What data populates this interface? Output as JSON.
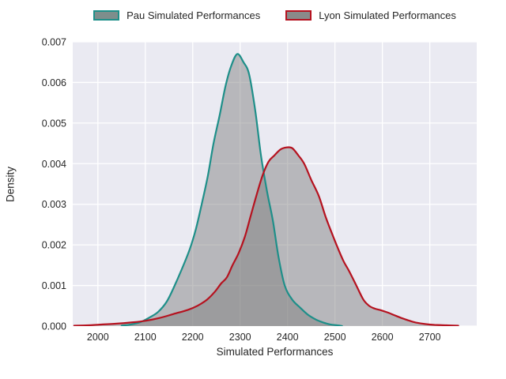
{
  "legend": {
    "items": [
      {
        "label": "Pau Simulated Performances",
        "edge_color": "#1e8f89",
        "swatch_fill": "#7d8e8c"
      },
      {
        "label": "Lyon Simulated Performances",
        "edge_color": "#b5121f",
        "swatch_fill": "#8a8a8a"
      }
    ]
  },
  "chart_data": {
    "type": "area",
    "subtype": "kde-density",
    "title": "",
    "xlabel": "Simulated Performances",
    "ylabel": "Density",
    "xlim": [
      1947,
      2799
    ],
    "ylim": [
      0,
      0.007
    ],
    "x_ticks": [
      2000,
      2100,
      2200,
      2300,
      2400,
      2500,
      2600,
      2700
    ],
    "y_ticks": [
      "0.000",
      "0.001",
      "0.002",
      "0.003",
      "0.004",
      "0.005",
      "0.006",
      "0.007"
    ],
    "grid": true,
    "legend_position": "top",
    "colors": {
      "plot_bg": "#eaeaf2",
      "grid": "#ffffff",
      "fill": "#7f7f7f",
      "fill_alpha": 0.48,
      "text": "#262626"
    },
    "series": [
      {
        "name": "Pau Simulated Performances",
        "color": "#1e8f89",
        "peak": {
          "x": 2294,
          "density": 0.0067
        },
        "points": [
          [
            2050,
            1e-05
          ],
          [
            2070,
            4e-05
          ],
          [
            2090,
            0.0001
          ],
          [
            2110,
            0.00022
          ],
          [
            2127,
            0.00035
          ],
          [
            2145,
            0.0006
          ],
          [
            2160,
            0.00095
          ],
          [
            2177,
            0.0014
          ],
          [
            2194,
            0.0019
          ],
          [
            2207,
            0.0024
          ],
          [
            2219,
            0.003
          ],
          [
            2232,
            0.0037
          ],
          [
            2244,
            0.0045
          ],
          [
            2257,
            0.0052
          ],
          [
            2269,
            0.0059
          ],
          [
            2281,
            0.0064
          ],
          [
            2294,
            0.0067
          ],
          [
            2307,
            0.0065
          ],
          [
            2319,
            0.0062
          ],
          [
            2332,
            0.0053
          ],
          [
            2344,
            0.0042
          ],
          [
            2357,
            0.0033
          ],
          [
            2369,
            0.0026
          ],
          [
            2381,
            0.0017
          ],
          [
            2394,
            0.001
          ],
          [
            2410,
            0.00065
          ],
          [
            2427,
            0.00045
          ],
          [
            2443,
            0.00028
          ],
          [
            2460,
            0.00016
          ],
          [
            2475,
            9e-05
          ],
          [
            2490,
            4e-05
          ],
          [
            2505,
            2e-05
          ],
          [
            2515,
            0.0
          ]
        ]
      },
      {
        "name": "Lyon Simulated Performances",
        "color": "#b5121f",
        "peak": {
          "x": 2398,
          "density": 0.0044
        },
        "points": [
          [
            1950,
            1e-05
          ],
          [
            1980,
            2e-05
          ],
          [
            2010,
            4e-05
          ],
          [
            2040,
            6e-05
          ],
          [
            2070,
            9e-05
          ],
          [
            2100,
            0.00013
          ],
          [
            2130,
            0.0002
          ],
          [
            2160,
            0.0003
          ],
          [
            2190,
            0.0004
          ],
          [
            2210,
            0.0005
          ],
          [
            2230,
            0.00065
          ],
          [
            2247,
            0.00085
          ],
          [
            2260,
            0.00105
          ],
          [
            2272,
            0.0012
          ],
          [
            2284,
            0.0015
          ],
          [
            2297,
            0.0018
          ],
          [
            2310,
            0.0022
          ],
          [
            2322,
            0.0027
          ],
          [
            2334,
            0.0032
          ],
          [
            2347,
            0.0037
          ],
          [
            2360,
            0.00405
          ],
          [
            2372,
            0.0042
          ],
          [
            2385,
            0.00435
          ],
          [
            2398,
            0.0044
          ],
          [
            2410,
            0.00438
          ],
          [
            2423,
            0.0042
          ],
          [
            2435,
            0.004
          ],
          [
            2450,
            0.0036
          ],
          [
            2466,
            0.0032
          ],
          [
            2480,
            0.0027
          ],
          [
            2493,
            0.0023
          ],
          [
            2505,
            0.00195
          ],
          [
            2518,
            0.0016
          ],
          [
            2530,
            0.00135
          ],
          [
            2545,
            0.001
          ],
          [
            2560,
            0.00065
          ],
          [
            2572,
            0.0005
          ],
          [
            2584,
            0.00043
          ],
          [
            2597,
            0.00039
          ],
          [
            2610,
            0.00034
          ],
          [
            2625,
            0.00027
          ],
          [
            2640,
            0.0002
          ],
          [
            2655,
            0.00014
          ],
          [
            2670,
            9e-05
          ],
          [
            2690,
            5e-05
          ],
          [
            2710,
            3e-05
          ],
          [
            2735,
            2e-05
          ],
          [
            2760,
            1e-05
          ]
        ]
      }
    ]
  }
}
